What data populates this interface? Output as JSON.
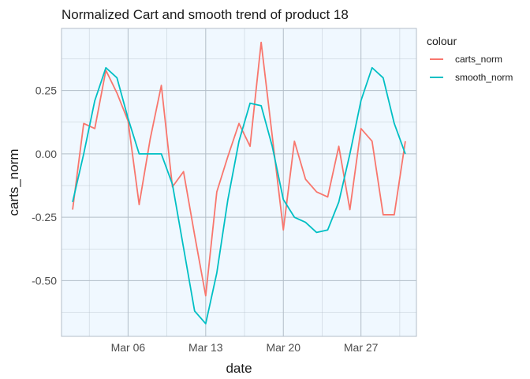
{
  "chart_data": {
    "type": "line",
    "title": "Normalized Cart and smooth trend of product 18",
    "xlabel": "date",
    "ylabel": "carts_norm",
    "x": [
      "2022-03-01",
      "2022-03-02",
      "2022-03-03",
      "2022-03-04",
      "2022-03-05",
      "2022-03-06",
      "2022-03-07",
      "2022-03-08",
      "2022-03-09",
      "2022-03-10",
      "2022-03-11",
      "2022-03-12",
      "2022-03-13",
      "2022-03-14",
      "2022-03-15",
      "2022-03-16",
      "2022-03-17",
      "2022-03-18",
      "2022-03-19",
      "2022-03-20",
      "2022-03-21",
      "2022-03-22",
      "2022-03-23",
      "2022-03-24",
      "2022-03-25",
      "2022-03-26",
      "2022-03-27",
      "2022-03-28",
      "2022-03-29",
      "2022-03-30",
      "2022-03-31"
    ],
    "series": [
      {
        "name": "carts_norm",
        "color": "#F8766D",
        "values": [
          -0.22,
          0.12,
          0.1,
          0.33,
          0.24,
          0.13,
          -0.2,
          0.06,
          0.27,
          -0.13,
          -0.07,
          -0.32,
          -0.56,
          -0.15,
          -0.01,
          0.12,
          0.03,
          0.44,
          0.07,
          -0.3,
          0.05,
          -0.1,
          -0.15,
          -0.17,
          0.03,
          -0.22,
          0.1,
          0.05,
          -0.24,
          -0.24,
          0.05
        ]
      },
      {
        "name": "smooth_norm",
        "color": "#00BFC4",
        "values": [
          -0.19,
          0.0,
          0.21,
          0.34,
          0.3,
          0.14,
          0.0,
          0.0,
          0.0,
          -0.12,
          -0.37,
          -0.62,
          -0.67,
          -0.47,
          -0.18,
          0.05,
          0.2,
          0.19,
          0.03,
          -0.18,
          -0.25,
          -0.27,
          -0.31,
          -0.3,
          -0.19,
          0.0,
          0.21,
          0.34,
          0.3,
          0.12,
          0.0
        ]
      }
    ],
    "yticks": [
      0.25,
      0.0,
      -0.25,
      -0.5
    ],
    "ytick_labels": [
      "0.25",
      "0.00",
      "-0.25",
      "-0.50"
    ],
    "xticks": [
      "2022-03-06",
      "2022-03-13",
      "2022-03-20",
      "2022-03-27"
    ],
    "xtick_labels": [
      "Mar 06",
      "Mar 13",
      "Mar 20",
      "Mar 27"
    ],
    "ylim": [
      -0.72,
      0.495
    ],
    "xlim": [
      "2022-02-28",
      "2022-04-01"
    ],
    "legend": {
      "title": "colour",
      "position": "right"
    },
    "grid": true,
    "panel_background": "#F0F8FF",
    "grid_color": "#B3BEC8"
  }
}
